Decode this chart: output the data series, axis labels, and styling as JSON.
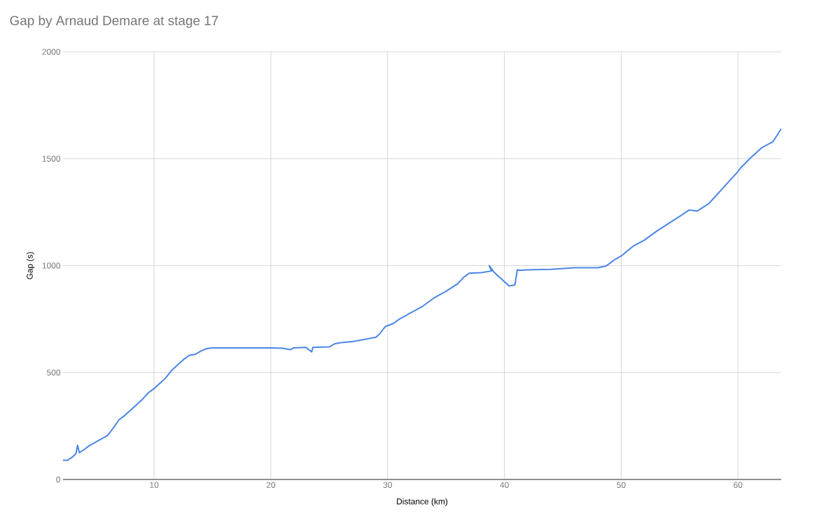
{
  "chart_data": {
    "type": "line",
    "title": "Gap by Arnaud Demare at stage 17",
    "xlabel": "Distance (km)",
    "ylabel": "Gap (s)",
    "xlim": [
      2.2,
      63.7
    ],
    "ylim": [
      0,
      2000
    ],
    "xticks": [
      10,
      20,
      30,
      40,
      50,
      60
    ],
    "yticks": [
      0,
      500,
      1000,
      1500,
      2000
    ],
    "grid": true,
    "series": [
      {
        "color": "#4a86e8",
        "x": [
          2.2,
          2.6,
          3.0,
          3.3,
          3.45,
          3.6,
          4.0,
          4.5,
          5.0,
          5.5,
          6.0,
          6.5,
          7.0,
          7.5,
          8.0,
          8.5,
          9.0,
          9.5,
          10.0,
          10.5,
          11.0,
          11.5,
          12.0,
          12.5,
          13.0,
          13.5,
          14.0,
          14.5,
          15,
          17,
          19,
          20,
          21,
          21.7,
          21.9,
          23,
          23.5,
          23.6,
          25,
          25.5,
          26,
          27,
          28,
          29,
          29.3,
          29.8,
          30.5,
          31,
          31.5,
          32,
          33,
          34,
          35,
          36,
          36.5,
          37,
          38,
          38.9,
          38.7,
          39.1,
          40.4,
          40.9,
          41.1,
          41.3,
          42,
          44,
          46,
          48,
          48.7,
          49.5,
          50,
          51,
          52,
          53,
          54,
          55,
          55.8,
          56.5,
          57.5,
          58,
          59,
          60,
          60.2,
          61,
          62,
          63,
          63.7
        ],
        "values": [
          90,
          90,
          105,
          120,
          160,
          125,
          140,
          160,
          175,
          190,
          205,
          240,
          280,
          300,
          325,
          350,
          375,
          405,
          425,
          450,
          475,
          510,
          535,
          560,
          580,
          585,
          600,
          612,
          615,
          615,
          615,
          615,
          614,
          607,
          615,
          618,
          597,
          618,
          620,
          635,
          640,
          645,
          655,
          665,
          680,
          715,
          730,
          750,
          765,
          780,
          810,
          850,
          880,
          915,
          945,
          965,
          967,
          975,
          1000,
          970,
          905,
          910,
          980,
          978,
          980,
          983,
          990,
          990,
          998,
          1030,
          1045,
          1090,
          1120,
          1160,
          1195,
          1230,
          1260,
          1255,
          1290,
          1320,
          1380,
          1440,
          1455,
          1500,
          1550,
          1580,
          1640
        ]
      }
    ]
  }
}
